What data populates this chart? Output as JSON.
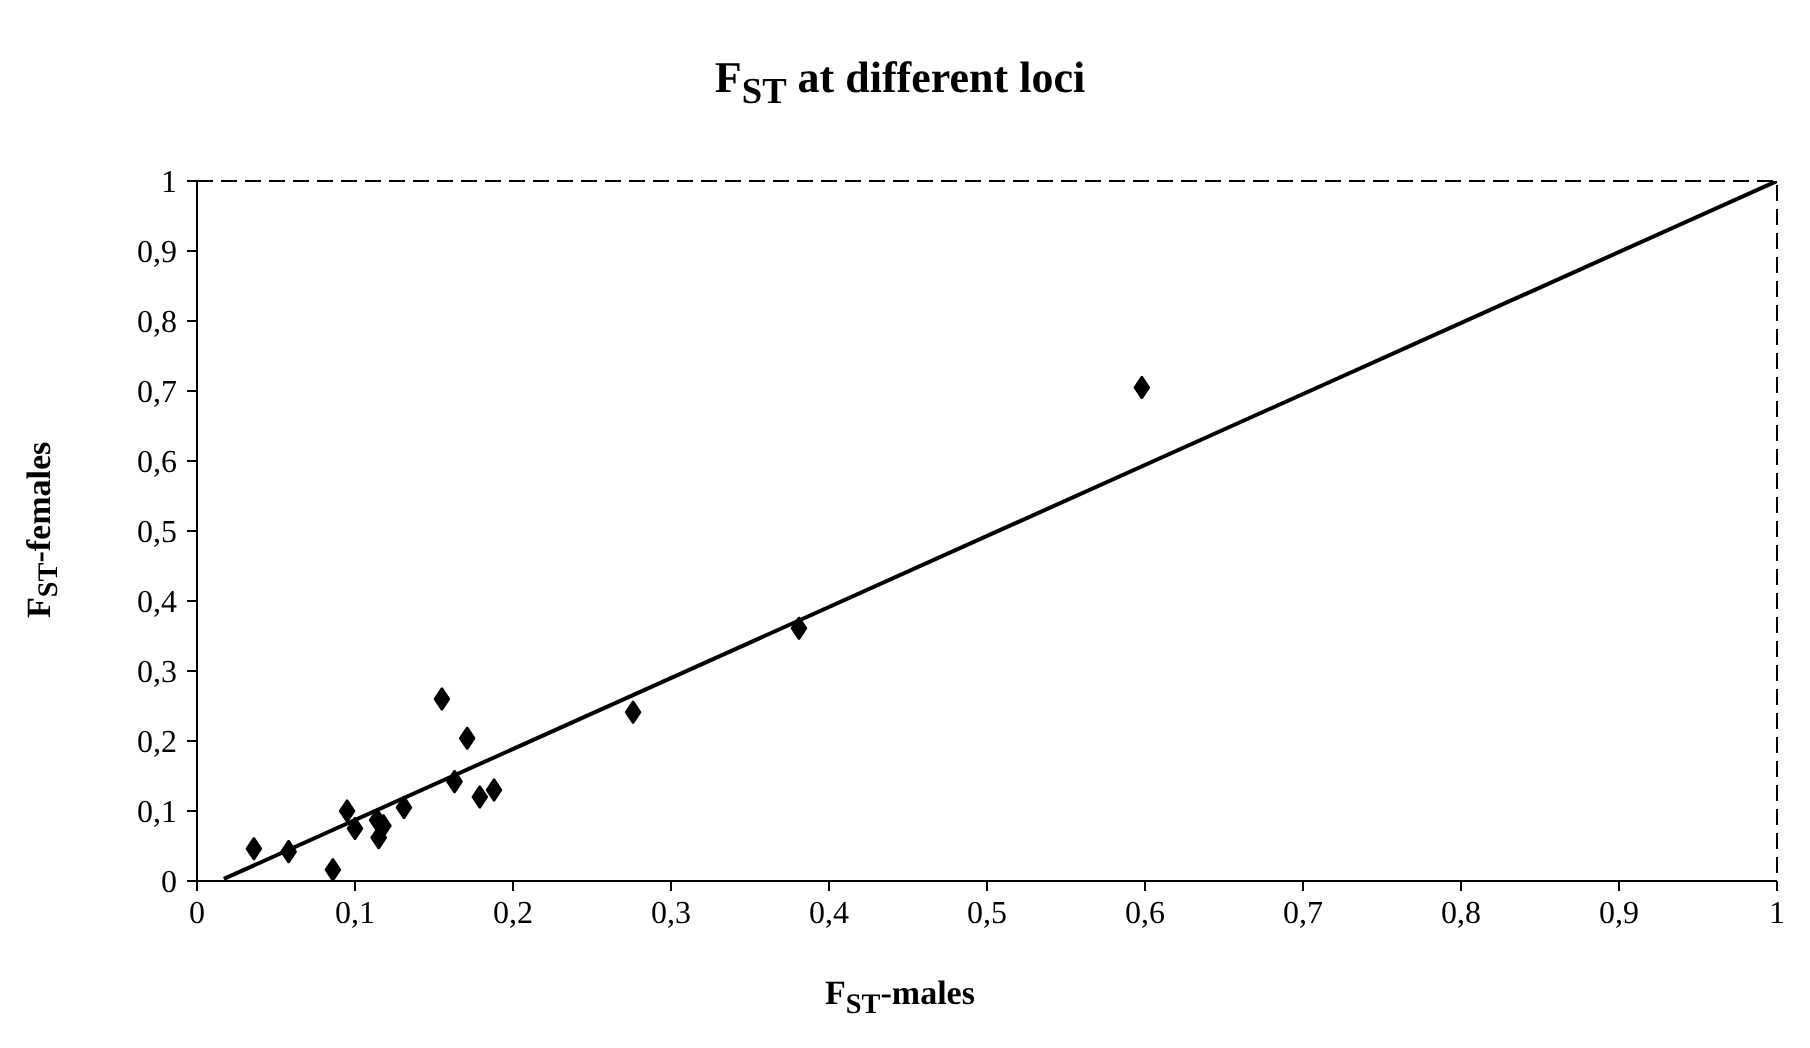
{
  "chart_data": {
    "type": "scatter",
    "title": "F$_{ST}$ at different loci",
    "xlabel": "F$_{ST}$-males",
    "ylabel": "F$_{ST}$-females",
    "marker": "diamond",
    "grid": false,
    "xlim": [
      0,
      1
    ],
    "ylim": [
      0,
      1
    ],
    "xticks": [
      0,
      {
        "value": 0.1,
        "label": "0,1"
      },
      {
        "value": 0.2,
        "label": "0,2"
      },
      {
        "value": 0.3,
        "label": "0,3"
      },
      {
        "value": 0.4,
        "label": "0,4"
      },
      {
        "value": 0.5,
        "label": "0,5"
      },
      {
        "value": 0.6,
        "label": "0,6"
      },
      {
        "value": 0.7,
        "label": "0,7"
      },
      {
        "value": 0.8,
        "label": "0,8"
      },
      {
        "value": 0.9,
        "label": "0,9"
      },
      1
    ],
    "yticks": [
      0,
      {
        "value": 0.1,
        "label": "0,1"
      },
      {
        "value": 0.2,
        "label": "0,2"
      },
      {
        "value": 0.3,
        "label": "0,3"
      },
      {
        "value": 0.4,
        "label": "0,4"
      },
      {
        "value": 0.5,
        "label": "0,5"
      },
      {
        "value": 0.6,
        "label": "0,6"
      },
      {
        "value": 0.7,
        "label": "0,7"
      },
      {
        "value": 0.8,
        "label": "0,8"
      },
      {
        "value": 0.9,
        "label": "0,9"
      },
      1
    ],
    "series": [
      {
        "color": "#000000",
        "x": [
          0.036,
          0.058,
          0.086,
          0.095,
          0.1,
          0.114,
          0.118,
          0.115,
          0.131,
          0.155,
          0.171,
          0.163,
          0.179,
          0.188,
          0.276,
          0.381,
          0.598
        ],
        "values": [
          0.046,
          0.042,
          0.016,
          0.1,
          0.075,
          0.087,
          0.079,
          0.062,
          0.105,
          0.26,
          0.204,
          0.142,
          0.12,
          0.13,
          0.241,
          0.361,
          0.705
        ]
      },
      {
        "type": "line",
        "color": "#000000",
        "marker": "none",
        "x": [
          0.017,
          1
        ],
        "values": [
          0.003,
          1
        ]
      }
    ]
  }
}
